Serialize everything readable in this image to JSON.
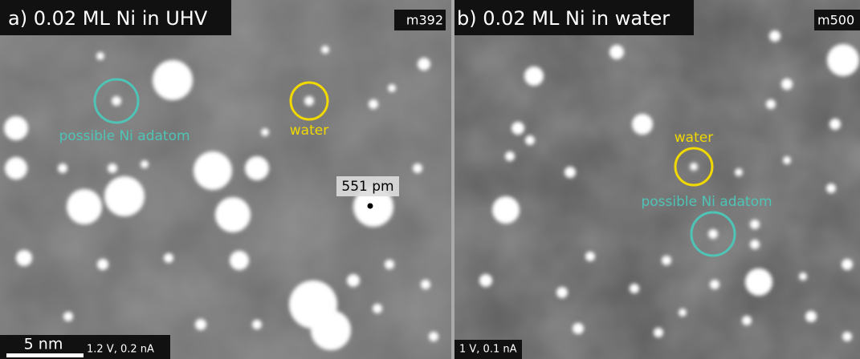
{
  "panels": [
    {
      "label": "a) 0.02 ML Ni in UHV",
      "id": "m392",
      "annotations": [
        "possible Ni adatom",
        "water"
      ],
      "height_label": "551 pm",
      "scale_bar": "5 nm",
      "parameters": "1.2 V, 0.2 nA"
    },
    {
      "label": "b) 0.02 ML Ni in water",
      "id": "m500",
      "annotations": [
        "water",
        "possible Ni adatom"
      ],
      "parameters": "1 V, 0.1 nA"
    }
  ]
}
